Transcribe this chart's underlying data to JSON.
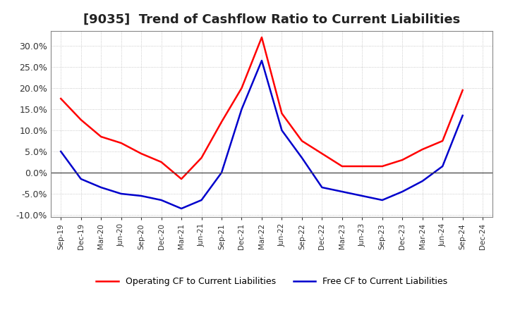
{
  "title": "[9035]  Trend of Cashflow Ratio to Current Liabilities",
  "x_labels": [
    "Sep-19",
    "Dec-19",
    "Mar-20",
    "Jun-20",
    "Sep-20",
    "Dec-20",
    "Mar-21",
    "Jun-21",
    "Sep-21",
    "Dec-21",
    "Mar-22",
    "Jun-22",
    "Sep-22",
    "Dec-22",
    "Mar-23",
    "Jun-23",
    "Sep-23",
    "Dec-23",
    "Mar-24",
    "Jun-24",
    "Sep-24",
    "Dec-24"
  ],
  "operating_cf": [
    17.5,
    12.5,
    8.5,
    7.0,
    4.5,
    2.5,
    -1.5,
    3.5,
    12.0,
    20.0,
    32.0,
    14.0,
    7.5,
    4.5,
    1.5,
    1.5,
    1.5,
    3.0,
    5.5,
    7.5,
    19.5,
    null
  ],
  "free_cf": [
    5.0,
    -1.5,
    -3.5,
    -5.0,
    -5.5,
    -6.5,
    -8.5,
    -6.5,
    0.0,
    15.0,
    26.5,
    10.0,
    3.5,
    -3.5,
    -4.5,
    -5.5,
    -6.5,
    -4.5,
    -2.0,
    1.5,
    13.5,
    null
  ],
  "operating_color": "#ff0000",
  "free_color": "#0000cc",
  "ylim": [
    -10.5,
    33.5
  ],
  "yticks": [
    -10.0,
    -5.0,
    0.0,
    5.0,
    10.0,
    15.0,
    20.0,
    25.0,
    30.0
  ],
  "legend_operating": "Operating CF to Current Liabilities",
  "legend_free": "Free CF to Current Liabilities",
  "background_color": "#ffffff",
  "grid_color": "#bbbbbb",
  "title_fontsize": 13,
  "title_color": "#222222"
}
